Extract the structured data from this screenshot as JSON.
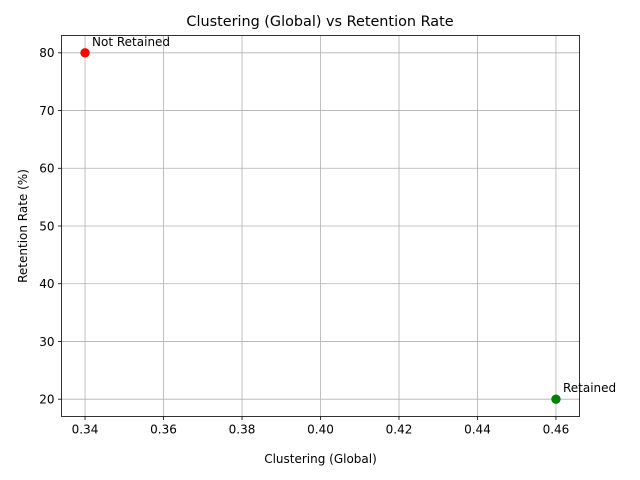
{
  "chart_data": {
    "type": "scatter",
    "title": "Clustering (Global) vs Retention Rate",
    "xlabel": "Clustering (Global)",
    "ylabel": "Retention Rate (%)",
    "xlim": [
      0.334,
      0.466
    ],
    "ylim": [
      17,
      83
    ],
    "xticks": [
      0.34,
      0.36,
      0.38,
      0.4,
      0.42,
      0.44,
      0.46
    ],
    "xtick_labels": [
      "0.34",
      "0.36",
      "0.38",
      "0.40",
      "0.42",
      "0.44",
      "0.46"
    ],
    "yticks": [
      20,
      30,
      40,
      50,
      60,
      70,
      80
    ],
    "ytick_labels": [
      "20",
      "30",
      "40",
      "50",
      "60",
      "70",
      "80"
    ],
    "grid": true,
    "points": [
      {
        "label": "Not Retained",
        "x": 0.34,
        "y": 80,
        "color": "#ff0000"
      },
      {
        "label": "Retained",
        "x": 0.46,
        "y": 20,
        "color": "#008000"
      }
    ]
  }
}
